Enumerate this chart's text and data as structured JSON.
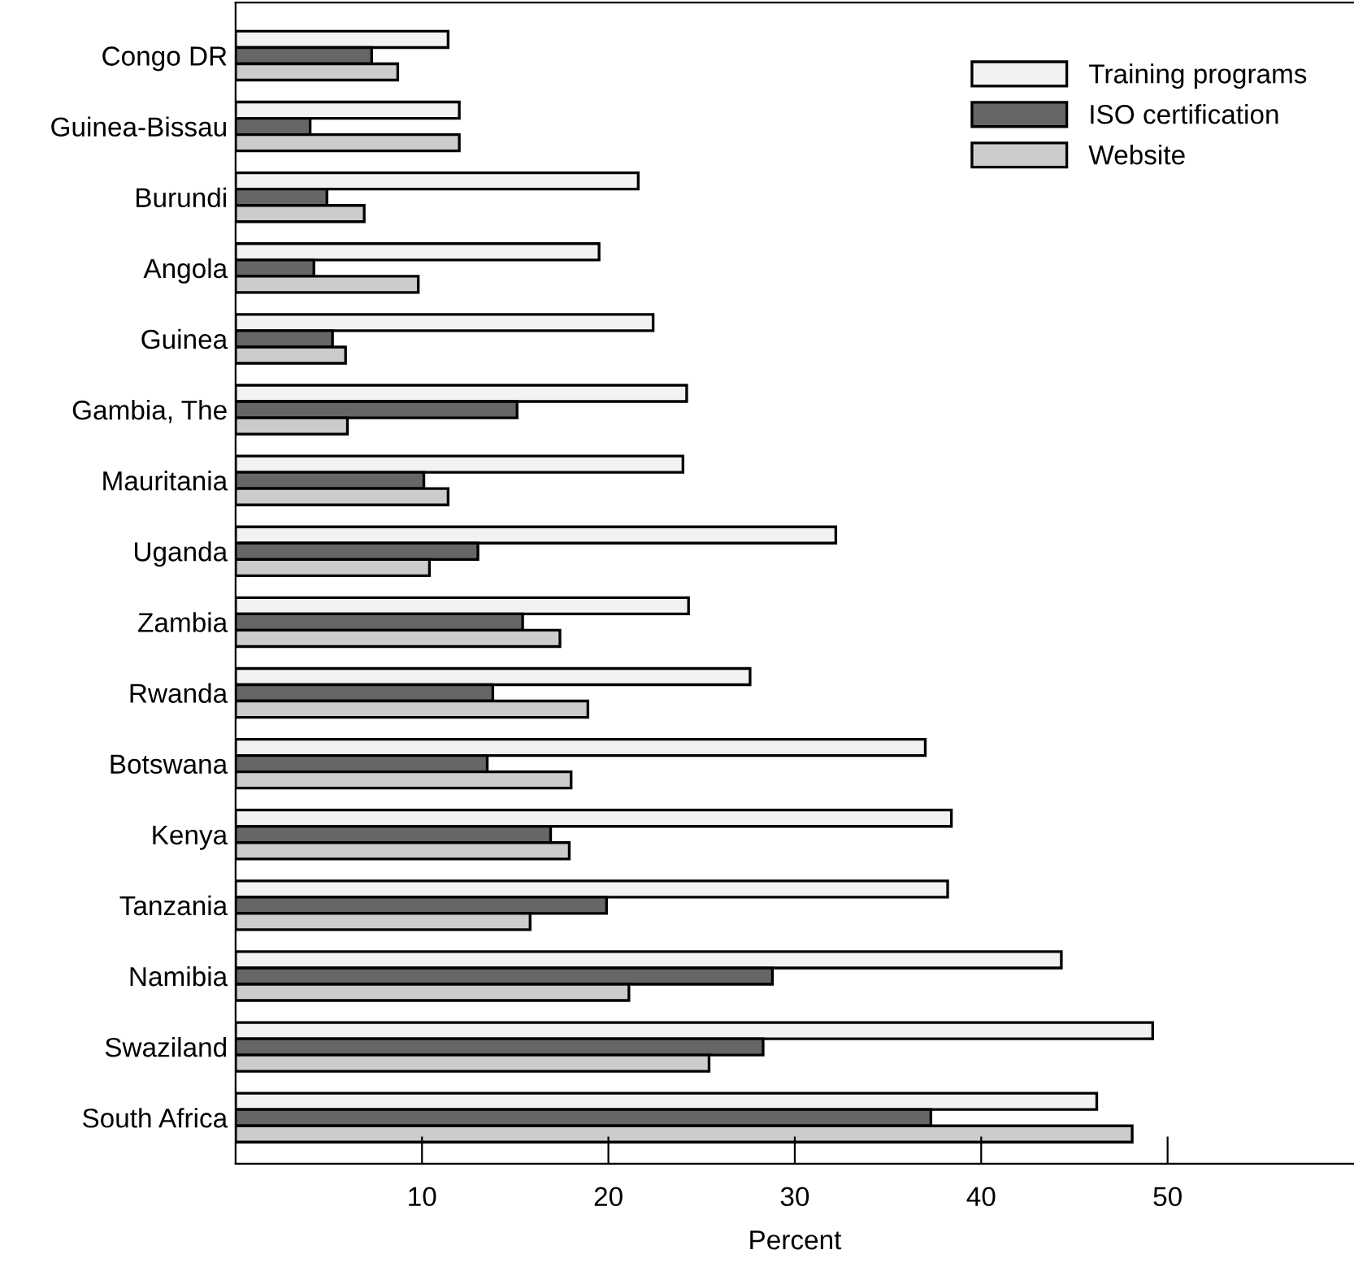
{
  "chart_data": {
    "type": "bar",
    "orientation": "horizontal",
    "xlabel": "Percent",
    "categories": [
      "Congo DR",
      "Guinea-Bissau",
      "Burundi",
      "Angola",
      "Guinea",
      "Gambia, The",
      "Mauritania",
      "Uganda",
      "Zambia",
      "Rwanda",
      "Botswana",
      "Kenya",
      "Tanzania",
      "Namibia",
      "Swaziland",
      "South Africa"
    ],
    "series": [
      {
        "name": "Training programs",
        "color": "#f2f2f2",
        "values": [
          11.4,
          12.0,
          21.6,
          19.5,
          22.4,
          24.2,
          24.0,
          32.2,
          24.3,
          27.6,
          37.0,
          38.4,
          38.2,
          44.3,
          49.2,
          46.2
        ]
      },
      {
        "name": "ISO certification",
        "color": "#666666",
        "values": [
          7.3,
          4.0,
          4.9,
          4.2,
          5.2,
          15.1,
          10.1,
          13.0,
          15.4,
          13.8,
          13.5,
          16.9,
          19.9,
          28.8,
          28.3,
          37.3
        ]
      },
      {
        "name": "Website",
        "color": "#cccccc",
        "values": [
          8.7,
          12.0,
          6.9,
          9.8,
          5.9,
          6.0,
          11.4,
          10.4,
          17.4,
          18.9,
          18.0,
          17.9,
          15.8,
          21.1,
          25.4,
          48.1
        ]
      }
    ],
    "xlim": [
      0,
      60
    ],
    "xticks": [
      10,
      20,
      30,
      40,
      50
    ],
    "grid": false,
    "legend": "top right"
  }
}
